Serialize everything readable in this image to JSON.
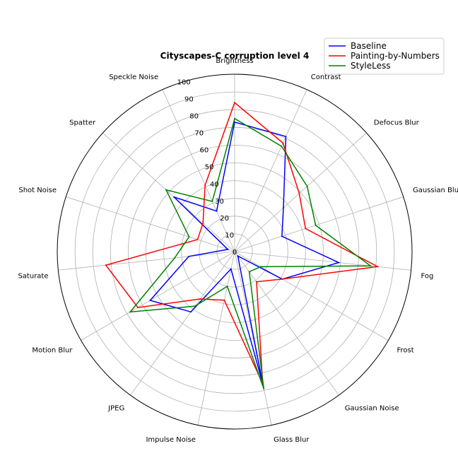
{
  "chart_data": {
    "type": "radar",
    "title": "Cityscapes-C corruption level 4",
    "categories": [
      "Brightness",
      "Speckle Noise",
      "Spatter",
      "Shot Noise",
      "Saturate",
      "Motion Blur",
      "JPEG",
      "Impulse Noise",
      "Glass Blur",
      "Gaussian Noise",
      "Frost",
      "Fog",
      "Gaussian Blur",
      "Defocus Blur",
      "Contrast"
    ],
    "rlim": [
      0,
      100
    ],
    "rticks": [
      "0",
      "10",
      "20",
      "30",
      "40",
      "50",
      "60",
      "70",
      "80",
      "90",
      "100"
    ],
    "grid": true,
    "legend_position": "top-right",
    "series": [
      {
        "name": "Baseline",
        "color": "#0000ff",
        "values": [
          73,
          25,
          46,
          4,
          26,
          55,
          42,
          10,
          76,
          3,
          31,
          59,
          28,
          37,
          71
        ]
      },
      {
        "name": "Painting-by-Numbers",
        "color": "#ff0000",
        "values": [
          84,
          41,
          24,
          22,
          73,
          63,
          33,
          28,
          76,
          21,
          31,
          81,
          42,
          49,
          67
        ]
      },
      {
        "name": "StyleLess",
        "color": "#008000",
        "values": [
          75,
          31,
          52,
          27,
          34,
          68,
          38,
          20,
          79,
          14,
          17,
          77,
          48,
          55,
          65
        ]
      }
    ]
  }
}
